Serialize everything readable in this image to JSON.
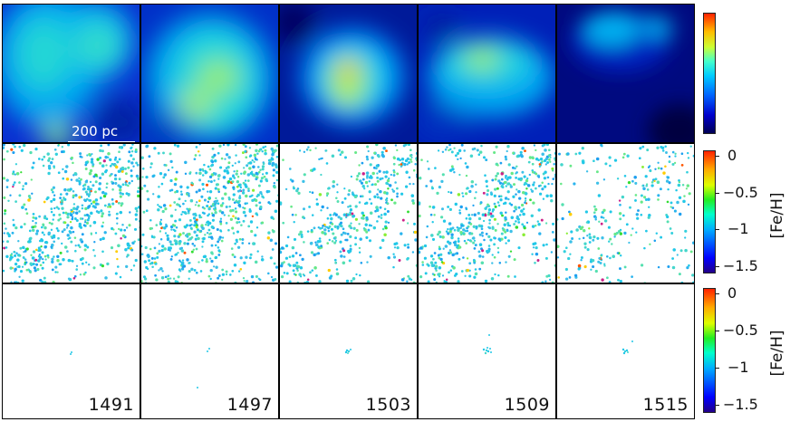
{
  "snapshots": [
    "1491",
    "1497",
    "1503",
    "1509",
    "1515"
  ],
  "scale_bar": {
    "label": "200 pc"
  },
  "rows": [
    {
      "id": "gas-density"
    },
    {
      "id": "stars-all"
    },
    {
      "id": "stars-new"
    }
  ],
  "colorbars": [
    {
      "id": "density",
      "ticks": []
    },
    {
      "id": "metallicity-stars",
      "title": "[Fe/H]",
      "ticks": [
        "0",
        "−0.5",
        "−1",
        "−1.5"
      ]
    },
    {
      "id": "metallicity-new",
      "title": "[Fe/H]",
      "ticks": [
        "0",
        "−0.5",
        "−1",
        "−1.5"
      ]
    }
  ],
  "colors": {
    "background_dark": "#000055",
    "dense_core": "#ff3300",
    "star_typical": "#22c8e8"
  }
}
